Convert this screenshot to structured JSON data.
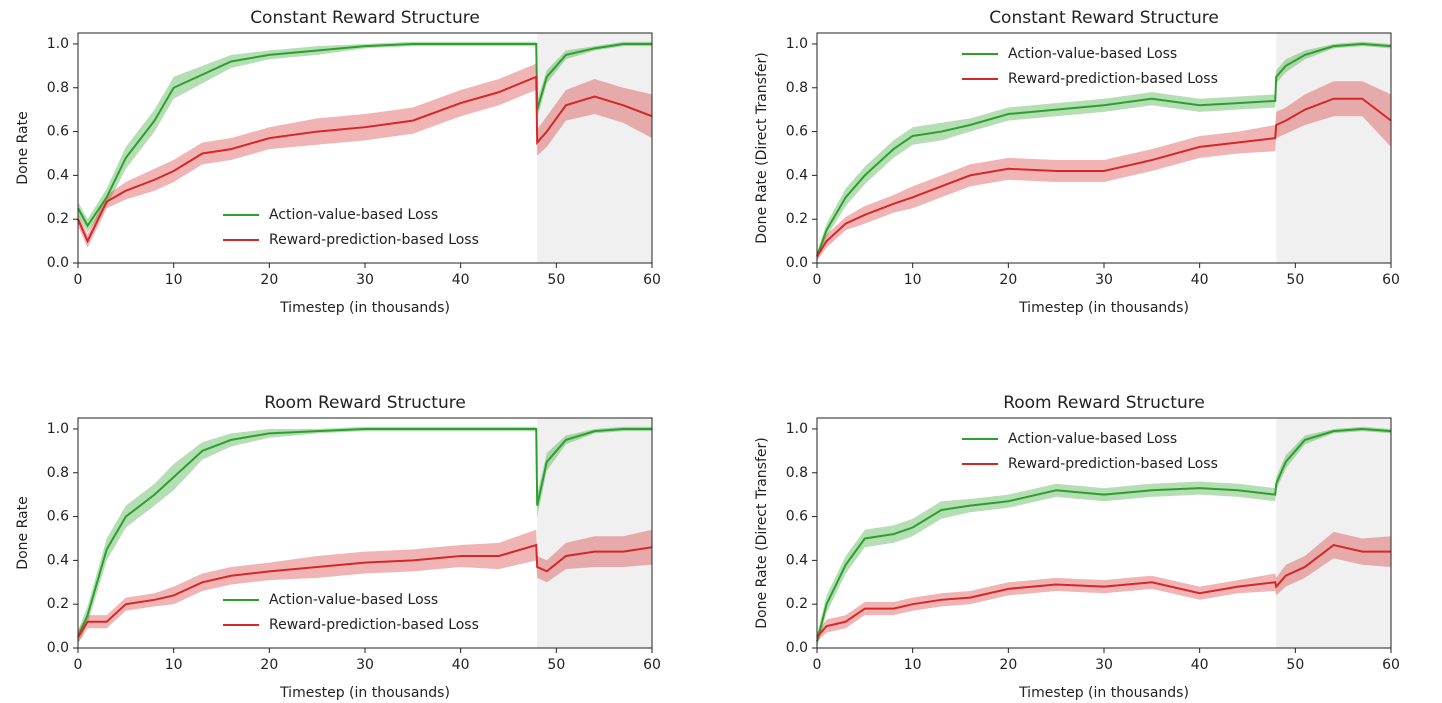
{
  "chart_data": [
    {
      "type": "line",
      "title": "Constant Reward Structure",
      "x_label": "Timestep (in thousands)",
      "y_label": "Done Rate",
      "x": [
        0,
        1,
        3,
        5,
        8,
        10,
        13,
        16,
        20,
        25,
        30,
        35,
        40,
        44,
        47.9,
        48,
        49,
        51,
        54,
        57,
        60
      ],
      "shaded_region": [
        48,
        60
      ],
      "legend": "lower center",
      "xlim": [
        0,
        60
      ],
      "xticks": [
        0,
        10,
        20,
        30,
        40,
        50,
        60
      ],
      "ylim": [
        0,
        1.05
      ],
      "yticks": [
        {
          "value": 0,
          "label": "0.0"
        },
        0.2,
        0.4,
        0.6,
        0.8,
        {
          "value": 1,
          "label": "1.0"
        }
      ],
      "series": [
        {
          "name": "Action-value-based Loss",
          "color": "#2ca02c",
          "values": [
            0.25,
            0.17,
            0.3,
            0.48,
            0.65,
            0.8,
            0.86,
            0.92,
            0.95,
            0.97,
            0.99,
            1.0,
            1.0,
            1.0,
            1.0,
            0.7,
            0.85,
            0.95,
            0.98,
            1.0,
            1.0
          ],
          "spread": [
            0.03,
            0.03,
            0.04,
            0.05,
            0.05,
            0.05,
            0.04,
            0.03,
            0.02,
            0.02,
            0.01,
            0.01,
            0.01,
            0.01,
            0.01,
            0.04,
            0.03,
            0.02,
            0.01,
            0.01,
            0.01
          ]
        },
        {
          "name": "Reward-prediction-based Loss",
          "color": "#d62728",
          "values": [
            0.2,
            0.1,
            0.28,
            0.33,
            0.38,
            0.42,
            0.5,
            0.52,
            0.57,
            0.6,
            0.62,
            0.65,
            0.73,
            0.78,
            0.85,
            0.55,
            0.6,
            0.72,
            0.76,
            0.72,
            0.67
          ],
          "spread": [
            0.03,
            0.03,
            0.03,
            0.04,
            0.05,
            0.05,
            0.05,
            0.05,
            0.05,
            0.06,
            0.06,
            0.06,
            0.06,
            0.06,
            0.06,
            0.06,
            0.07,
            0.07,
            0.08,
            0.08,
            0.1
          ]
        }
      ]
    },
    {
      "type": "line",
      "title": "Constant Reward Structure",
      "x_label": "Timestep (in thousands)",
      "y_label": "Done Rate (Direct Transfer)",
      "x": [
        0,
        1,
        3,
        5,
        8,
        10,
        13,
        16,
        20,
        25,
        30,
        35,
        40,
        44,
        47.9,
        48,
        49,
        51,
        54,
        57,
        60
      ],
      "shaded_region": [
        48,
        60
      ],
      "legend": "upper center",
      "xlim": [
        0,
        60
      ],
      "xticks": [
        0,
        10,
        20,
        30,
        40,
        50,
        60
      ],
      "ylim": [
        0,
        1.05
      ],
      "yticks": [
        {
          "value": 0,
          "label": "0.0"
        },
        0.2,
        0.4,
        0.6,
        0.8,
        {
          "value": 1,
          "label": "1.0"
        }
      ],
      "series": [
        {
          "name": "Action-value-based Loss",
          "color": "#2ca02c",
          "values": [
            0.03,
            0.15,
            0.3,
            0.4,
            0.52,
            0.58,
            0.6,
            0.63,
            0.68,
            0.7,
            0.72,
            0.75,
            0.72,
            0.73,
            0.74,
            0.85,
            0.9,
            0.95,
            0.99,
            1.0,
            0.99
          ],
          "spread": [
            0.02,
            0.03,
            0.04,
            0.04,
            0.04,
            0.04,
            0.04,
            0.03,
            0.03,
            0.03,
            0.03,
            0.03,
            0.03,
            0.03,
            0.03,
            0.03,
            0.03,
            0.02,
            0.01,
            0.01,
            0.01
          ]
        },
        {
          "name": "Reward-prediction-based Loss",
          "color": "#d62728",
          "values": [
            0.03,
            0.1,
            0.18,
            0.22,
            0.27,
            0.3,
            0.35,
            0.4,
            0.43,
            0.42,
            0.42,
            0.47,
            0.53,
            0.55,
            0.57,
            0.63,
            0.65,
            0.7,
            0.75,
            0.75,
            0.65
          ],
          "spread": [
            0.02,
            0.03,
            0.03,
            0.04,
            0.04,
            0.05,
            0.05,
            0.05,
            0.05,
            0.05,
            0.05,
            0.05,
            0.05,
            0.05,
            0.06,
            0.06,
            0.06,
            0.07,
            0.08,
            0.08,
            0.12
          ]
        }
      ]
    },
    {
      "type": "line",
      "title": "Room Reward Structure",
      "x_label": "Timestep (in thousands)",
      "y_label": "Done Rate",
      "x": [
        0,
        1,
        3,
        5,
        8,
        10,
        13,
        16,
        20,
        25,
        30,
        35,
        40,
        44,
        47.9,
        48,
        49,
        51,
        54,
        57,
        60
      ],
      "shaded_region": [
        48,
        60
      ],
      "legend": "lower center",
      "xlim": [
        0,
        60
      ],
      "xticks": [
        0,
        10,
        20,
        30,
        40,
        50,
        60
      ],
      "ylim": [
        0,
        1.05
      ],
      "yticks": [
        {
          "value": 0,
          "label": "0.0"
        },
        0.2,
        0.4,
        0.6,
        0.8,
        {
          "value": 1,
          "label": "1.0"
        }
      ],
      "series": [
        {
          "name": "Action-value-based Loss",
          "color": "#2ca02c",
          "values": [
            0.05,
            0.15,
            0.45,
            0.6,
            0.7,
            0.78,
            0.9,
            0.95,
            0.98,
            0.99,
            1.0,
            1.0,
            1.0,
            1.0,
            1.0,
            0.65,
            0.85,
            0.95,
            0.99,
            1.0,
            1.0
          ],
          "spread": [
            0.03,
            0.04,
            0.05,
            0.05,
            0.05,
            0.06,
            0.04,
            0.03,
            0.02,
            0.01,
            0.01,
            0.01,
            0.01,
            0.01,
            0.01,
            0.05,
            0.04,
            0.02,
            0.01,
            0.01,
            0.01
          ]
        },
        {
          "name": "Reward-prediction-based Loss",
          "color": "#d62728",
          "values": [
            0.05,
            0.12,
            0.12,
            0.2,
            0.22,
            0.24,
            0.3,
            0.33,
            0.35,
            0.37,
            0.39,
            0.4,
            0.42,
            0.42,
            0.47,
            0.37,
            0.35,
            0.42,
            0.44,
            0.44,
            0.46
          ],
          "spread": [
            0.03,
            0.03,
            0.03,
            0.03,
            0.03,
            0.04,
            0.04,
            0.04,
            0.04,
            0.05,
            0.05,
            0.05,
            0.05,
            0.06,
            0.07,
            0.05,
            0.05,
            0.06,
            0.07,
            0.07,
            0.08
          ]
        }
      ]
    },
    {
      "type": "line",
      "title": "Room Reward Structure",
      "x_label": "Timestep (in thousands)",
      "y_label": "Done Rate (Direct Transfer)",
      "x": [
        0,
        1,
        3,
        5,
        8,
        10,
        13,
        16,
        20,
        25,
        30,
        35,
        40,
        44,
        47.9,
        48,
        49,
        51,
        54,
        57,
        60
      ],
      "shaded_region": [
        48,
        60
      ],
      "legend": "upper center",
      "xlim": [
        0,
        60
      ],
      "xticks": [
        0,
        10,
        20,
        30,
        40,
        50,
        60
      ],
      "ylim": [
        0,
        1.05
      ],
      "yticks": [
        {
          "value": 0,
          "label": "0.0"
        },
        0.2,
        0.4,
        0.6,
        0.8,
        {
          "value": 1,
          "label": "1.0"
        }
      ],
      "series": [
        {
          "name": "Action-value-based Loss",
          "color": "#2ca02c",
          "values": [
            0.03,
            0.2,
            0.38,
            0.5,
            0.52,
            0.55,
            0.63,
            0.65,
            0.67,
            0.72,
            0.7,
            0.72,
            0.73,
            0.72,
            0.7,
            0.75,
            0.85,
            0.95,
            0.99,
            1.0,
            0.99
          ],
          "spread": [
            0.03,
            0.04,
            0.04,
            0.04,
            0.04,
            0.04,
            0.04,
            0.03,
            0.03,
            0.03,
            0.03,
            0.03,
            0.03,
            0.03,
            0.03,
            0.03,
            0.03,
            0.02,
            0.01,
            0.01,
            0.01
          ]
        },
        {
          "name": "Reward-prediction-based Loss",
          "color": "#d62728",
          "values": [
            0.05,
            0.1,
            0.12,
            0.18,
            0.18,
            0.2,
            0.22,
            0.23,
            0.27,
            0.29,
            0.28,
            0.3,
            0.25,
            0.28,
            0.3,
            0.28,
            0.33,
            0.37,
            0.47,
            0.44,
            0.44
          ],
          "spread": [
            0.02,
            0.03,
            0.03,
            0.03,
            0.03,
            0.03,
            0.03,
            0.03,
            0.03,
            0.03,
            0.03,
            0.03,
            0.03,
            0.03,
            0.04,
            0.04,
            0.05,
            0.05,
            0.06,
            0.06,
            0.07
          ]
        }
      ]
    }
  ]
}
